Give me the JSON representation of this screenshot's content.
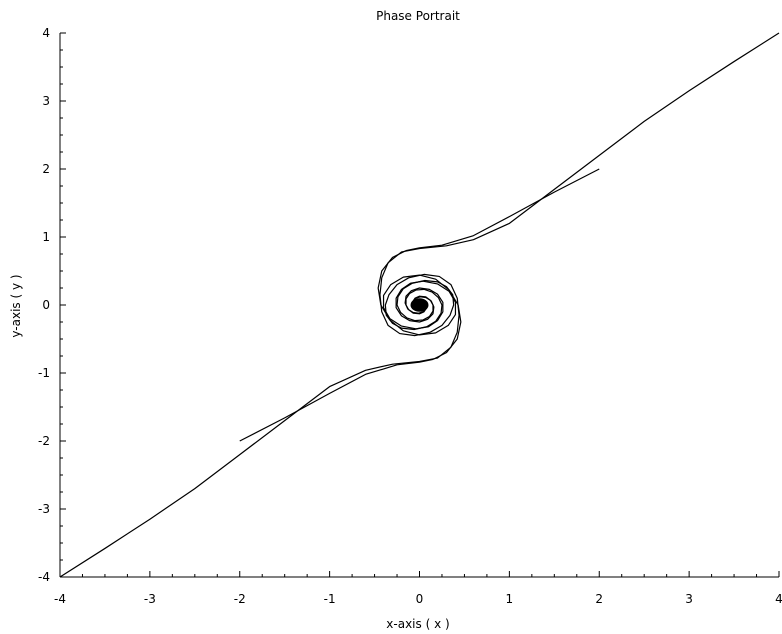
{
  "chart_data": {
    "type": "line",
    "title": "Phase Portrait",
    "xlabel": "x-axis ( x )",
    "ylabel": "y-axis ( y )",
    "xlim": [
      -4,
      4
    ],
    "ylim": [
      -4,
      4
    ],
    "xticks": [
      -4,
      -3,
      -2,
      -1,
      0,
      1,
      2,
      3,
      4
    ],
    "yticks": [
      -4,
      -3,
      -2,
      -1,
      0,
      1,
      2,
      3,
      4
    ],
    "xtick_labels": [
      "-4",
      "-3",
      "-2",
      "-1",
      "0",
      "1",
      "2",
      "3",
      "4"
    ],
    "ytick_labels": [
      "-4",
      "-3",
      "-2",
      "-1",
      "0",
      "1",
      "2",
      "3",
      "4"
    ],
    "grid": false,
    "line_color": "#000000",
    "series": [
      {
        "x": [
          4.0,
          3.5,
          3.0,
          2.5,
          2.0,
          1.5,
          1.0,
          0.6,
          0.3,
          0.0,
          -0.2,
          -0.35,
          -0.42,
          -0.44,
          -0.42,
          -0.35,
          -0.22,
          -0.05,
          0.12,
          0.25,
          0.34,
          0.38,
          0.37,
          0.3,
          0.2,
          0.06,
          -0.08,
          -0.18,
          -0.24,
          -0.25,
          -0.21,
          -0.14,
          -0.05,
          0.04,
          0.11,
          0.15,
          0.15,
          0.12,
          0.07,
          0.01,
          -0.04,
          -0.07,
          -0.08,
          -0.06,
          -0.03,
          0.0
        ],
        "y": [
          4.0,
          3.58,
          3.15,
          2.7,
          2.2,
          1.7,
          1.2,
          0.96,
          0.87,
          0.83,
          0.78,
          0.62,
          0.4,
          0.15,
          -0.1,
          -0.3,
          -0.42,
          -0.45,
          -0.4,
          -0.3,
          -0.15,
          0.0,
          0.15,
          0.27,
          0.34,
          0.36,
          0.32,
          0.24,
          0.12,
          0.0,
          -0.11,
          -0.19,
          -0.23,
          -0.22,
          -0.17,
          -0.09,
          0.0,
          0.07,
          0.11,
          0.12,
          0.1,
          0.06,
          0.01,
          -0.03,
          -0.04,
          0.0
        ]
      },
      {
        "x": [
          2.0,
          1.5,
          1.0,
          0.6,
          0.25,
          0.0,
          -0.15,
          -0.3,
          -0.42,
          -0.46,
          -0.43,
          -0.33,
          -0.18,
          0.0,
          0.18,
          0.32,
          0.4,
          0.4,
          0.33,
          0.2,
          0.04,
          -0.1,
          -0.2,
          -0.26,
          -0.26,
          -0.2,
          -0.11,
          0.0,
          0.09,
          0.15,
          0.16,
          0.13,
          0.07,
          0.0,
          -0.05,
          -0.08,
          -0.07,
          -0.04,
          0.0
        ],
        "y": [
          2.0,
          1.66,
          1.3,
          1.02,
          0.88,
          0.84,
          0.8,
          0.7,
          0.5,
          0.25,
          0.0,
          -0.22,
          -0.38,
          -0.44,
          -0.41,
          -0.3,
          -0.14,
          0.04,
          0.2,
          0.31,
          0.35,
          0.32,
          0.23,
          0.1,
          -0.04,
          -0.16,
          -0.23,
          -0.25,
          -0.21,
          -0.13,
          -0.03,
          0.06,
          0.12,
          0.13,
          0.1,
          0.04,
          -0.01,
          -0.04,
          0.0
        ]
      },
      {
        "x": [
          -4.0,
          -3.5,
          -3.0,
          -2.5,
          -2.0,
          -1.5,
          -1.0,
          -0.6,
          -0.3,
          0.0,
          0.2,
          0.35,
          0.42,
          0.44,
          0.42,
          0.35,
          0.22,
          0.05,
          -0.12,
          -0.25,
          -0.34,
          -0.38,
          -0.37,
          -0.3,
          -0.2,
          -0.06,
          0.08,
          0.18,
          0.24,
          0.25,
          0.21,
          0.14,
          0.05,
          -0.04,
          -0.11,
          -0.15,
          -0.15,
          -0.12,
          -0.07,
          -0.01,
          0.04,
          0.07,
          0.08,
          0.06,
          0.03,
          0.0
        ],
        "y": [
          -4.0,
          -3.58,
          -3.15,
          -2.7,
          -2.2,
          -1.7,
          -1.2,
          -0.96,
          -0.87,
          -0.83,
          -0.78,
          -0.62,
          -0.4,
          -0.15,
          0.1,
          0.3,
          0.42,
          0.45,
          0.4,
          0.3,
          0.15,
          0.0,
          -0.15,
          -0.27,
          -0.34,
          -0.36,
          -0.32,
          -0.24,
          -0.12,
          0.0,
          0.11,
          0.19,
          0.23,
          0.22,
          0.17,
          0.09,
          0.0,
          -0.07,
          -0.11,
          -0.12,
          -0.1,
          -0.06,
          -0.01,
          0.03,
          0.04,
          0.0
        ]
      },
      {
        "x": [
          -2.0,
          -1.5,
          -1.0,
          -0.6,
          -0.25,
          0.0,
          0.15,
          0.3,
          0.42,
          0.46,
          0.43,
          0.33,
          0.18,
          0.0,
          -0.18,
          -0.32,
          -0.4,
          -0.4,
          -0.33,
          -0.2,
          -0.04,
          0.1,
          0.2,
          0.26,
          0.26,
          0.2,
          0.11,
          0.0,
          -0.09,
          -0.15,
          -0.16,
          -0.13,
          -0.07,
          0.0,
          0.05,
          0.08,
          0.07,
          0.04,
          0.0
        ],
        "y": [
          -2.0,
          -1.66,
          -1.3,
          -1.02,
          -0.88,
          -0.84,
          -0.8,
          -0.7,
          -0.5,
          -0.25,
          0.0,
          0.22,
          0.38,
          0.44,
          0.41,
          0.3,
          0.14,
          -0.04,
          -0.2,
          -0.31,
          -0.35,
          -0.32,
          -0.23,
          -0.1,
          0.04,
          0.16,
          0.23,
          0.25,
          0.21,
          0.13,
          0.03,
          -0.06,
          -0.12,
          -0.13,
          -0.1,
          -0.04,
          0.01,
          0.04,
          0.0
        ]
      }
    ],
    "center_blob": {
      "x": 0,
      "y": 0,
      "radius": 0.1
    }
  }
}
